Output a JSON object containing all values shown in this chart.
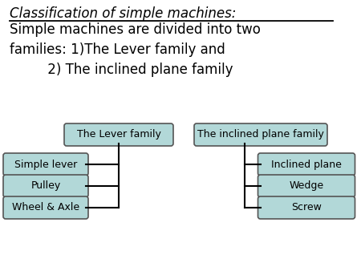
{
  "bg_color": "#ffffff",
  "title_line1": "Classification of simple machines:",
  "title_line2": "Simple machines are divided into two",
  "title_line3": "families: 1)The Lever family and",
  "title_line4": "         2) The inclined plane family",
  "box_color": "#b2d8d8",
  "box_edge_color": "#555555",
  "text_color": "#000000",
  "lever_family_label": "The Lever family",
  "inclined_family_label": "The inclined plane family",
  "lever_children": [
    "Simple lever",
    "Pulley",
    "Wheel & Axle"
  ],
  "inclined_children": [
    "Inclined plane",
    "Wedge",
    "Screw"
  ],
  "figsize": [
    4.5,
    3.38
  ],
  "dpi": 100
}
